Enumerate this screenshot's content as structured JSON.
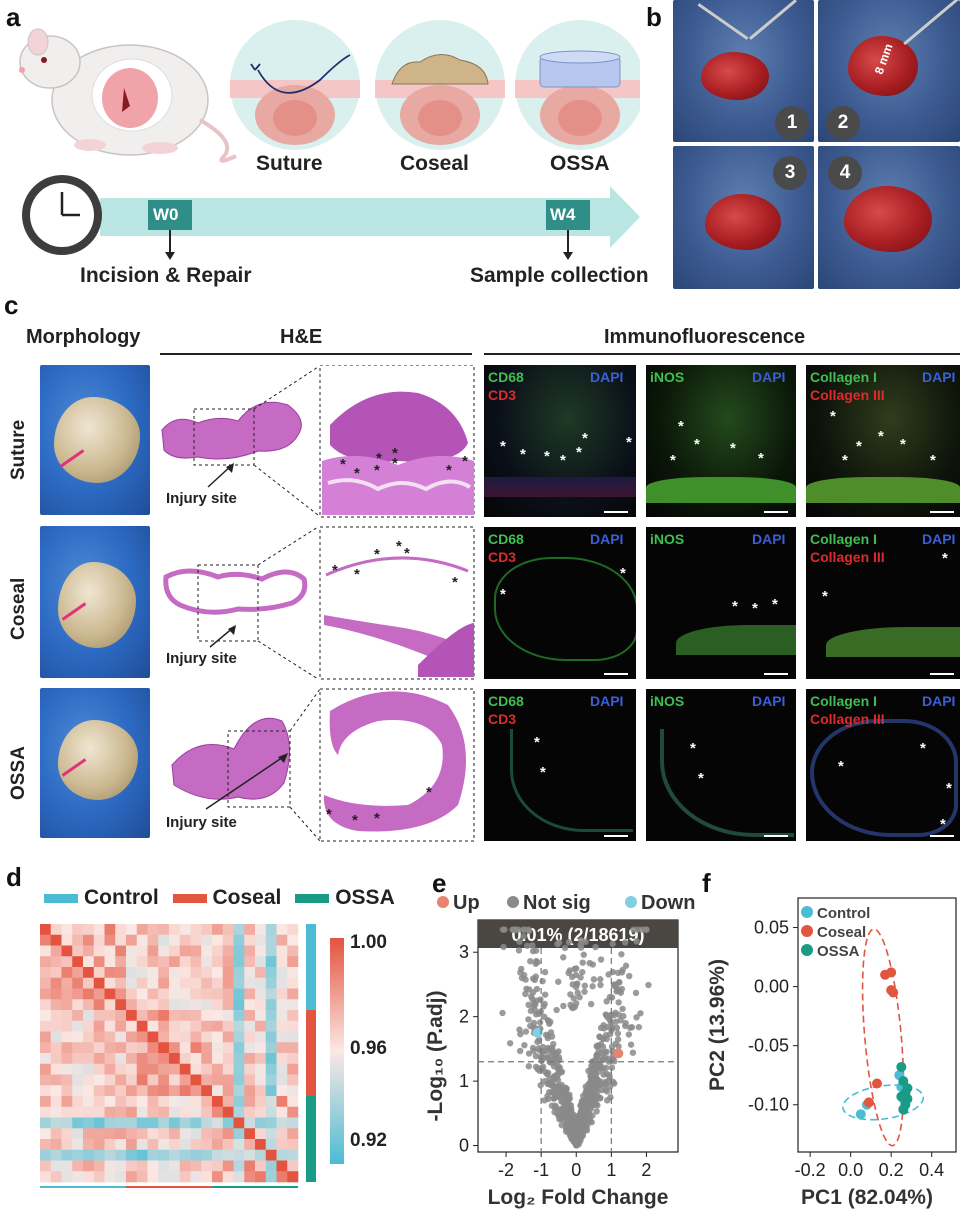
{
  "panels": {
    "a": "a",
    "b": "b",
    "c": "c",
    "d": "d",
    "e": "e",
    "f": "f"
  },
  "a": {
    "methods": [
      "Suture",
      "Coseal",
      "OSSA"
    ],
    "timeline": {
      "start_label": "W0",
      "end_label": "W4",
      "start_event": "Incision & Repair",
      "end_event": "Sample collection"
    }
  },
  "b": {
    "steps": [
      "1",
      "2",
      "3",
      "4"
    ],
    "measure": "8 mm"
  },
  "c": {
    "headers": {
      "morphology": "Morphology",
      "he": "H&E",
      "if": "Immunofluorescence"
    },
    "rows": [
      "Suture",
      "Coseal",
      "OSSA"
    ],
    "injury_label": "Injury site",
    "markers": {
      "cd68": "CD68",
      "dapi": "DAPI",
      "cd3": "CD3",
      "inos": "iNOS",
      "collagen1": "Collagen I",
      "collagen3": "Collagen III"
    },
    "asterisk": "*"
  },
  "d": {
    "legend": [
      "Control",
      "Coseal",
      "OSSA"
    ],
    "colors": {
      "Control": "#4bbcd3",
      "Coseal": "#e2553f",
      "OSSA": "#1a9b86"
    },
    "colorbar_ticks": [
      "1.00",
      "0.96",
      "0.92"
    ],
    "samples_per_group": 8
  },
  "chart_data": [
    {
      "type": "heatmap",
      "title": "",
      "groups": [
        "Control",
        "Coseal",
        "OSSA"
      ],
      "value_range": [
        0.9,
        1.0
      ],
      "colorbar_ticks": [
        1.0,
        0.96,
        0.92
      ]
    },
    {
      "type": "scatter",
      "title": "",
      "xlabel": "Log₂ Fold Change",
      "ylabel": "-Log₁₀ (P.adj)",
      "xticks": [
        -2,
        -1,
        0,
        1,
        2
      ],
      "yticks": [
        0,
        1,
        2,
        3
      ],
      "xlim": [
        -2.8,
        2.9
      ],
      "ylim": [
        -0.1,
        3.5
      ],
      "legend": [
        "Up",
        "Not sig",
        "Down"
      ],
      "colors": {
        "Up": "#e8836f",
        "Not sig": "#8a8a8a",
        "Down": "#7fd0e3"
      },
      "annotation": "0.01% (2/18619)",
      "thresholds": {
        "x": [
          -1,
          1
        ],
        "y": 1.3
      },
      "highlight_points": [
        {
          "group": "Up",
          "x": 1.2,
          "y": 1.43
        },
        {
          "group": "Down",
          "x": -1.1,
          "y": 1.75
        }
      ]
    },
    {
      "type": "scatter",
      "title": "",
      "xlabel": "PC1 (82.04%)",
      "ylabel": "PC2 (13.96%)",
      "xticks": [
        -0.2,
        0.0,
        0.2,
        0.4
      ],
      "yticks": [
        0.05,
        0.0,
        -0.05,
        -0.1
      ],
      "xtick_labels": [
        "-0.2",
        "0.0",
        "0.2",
        "0.4"
      ],
      "ytick_labels": [
        "0.05",
        "0.00",
        "-0.05",
        "-0.10"
      ],
      "xlim": [
        -0.26,
        0.52
      ],
      "ylim": [
        -0.14,
        0.075
      ],
      "legend": [
        "Control",
        "Coseal",
        "OSSA"
      ],
      "colors": {
        "Control": "#4bbcd3",
        "Coseal": "#e2553f",
        "OSSA": "#1a9b86"
      },
      "series": [
        {
          "name": "Control",
          "x": [
            0.05,
            0.08,
            0.24,
            0.25,
            0.27,
            0.26
          ],
          "y": [
            -0.108,
            -0.1,
            -0.075,
            -0.085,
            -0.09,
            -0.095
          ]
        },
        {
          "name": "Coseal",
          "x": [
            0.17,
            0.2,
            0.21,
            0.2,
            0.13,
            0.09
          ],
          "y": [
            0.01,
            0.012,
            -0.005,
            -0.003,
            -0.082,
            -0.098
          ]
        },
        {
          "name": "OSSA",
          "x": [
            0.25,
            0.26,
            0.27,
            0.28,
            0.27,
            0.26,
            0.28,
            0.25
          ],
          "y": [
            -0.068,
            -0.08,
            -0.09,
            -0.095,
            -0.1,
            -0.104,
            -0.086,
            -0.093
          ]
        }
      ],
      "ellipses": [
        {
          "name": "Coseal",
          "cx": 0.16,
          "cy": -0.043,
          "rx": 0.09,
          "ry": 0.092,
          "angle": 5
        },
        {
          "name": "Control",
          "cx": 0.16,
          "cy": -0.098,
          "rx": 0.2,
          "ry": 0.014,
          "angle": 8
        }
      ]
    }
  ]
}
